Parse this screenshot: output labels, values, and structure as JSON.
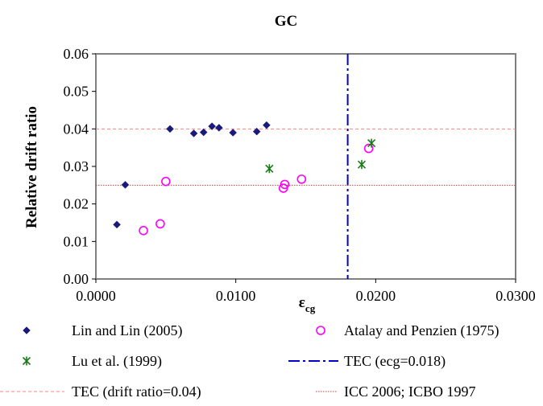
{
  "chart_data": {
    "type": "scatter",
    "title": "GC",
    "ylabel": "Relative drift ratio",
    "xlabel_main": "ε",
    "xlabel_sub": "cg",
    "xlim": [
      0,
      0.03
    ],
    "ylim": [
      0,
      0.06
    ],
    "xticks": [
      "0.0000",
      "0.0100",
      "0.0200",
      "0.0300"
    ],
    "yticks": [
      "0.00",
      "0.01",
      "0.02",
      "0.03",
      "0.04",
      "0.05",
      "0.06"
    ],
    "grid": false,
    "legend_placement": "bottom",
    "series": [
      {
        "name": "Lin and Lin (2005)",
        "marker": "diamond",
        "color": "#1a1a7a",
        "points": [
          [
            0.0015,
            0.0145
          ],
          [
            0.0021,
            0.0251
          ],
          [
            0.0053,
            0.04
          ],
          [
            0.007,
            0.0388
          ],
          [
            0.0077,
            0.0391
          ],
          [
            0.0083,
            0.0407
          ],
          [
            0.0088,
            0.0403
          ],
          [
            0.0098,
            0.039
          ],
          [
            0.0115,
            0.0393
          ],
          [
            0.0122,
            0.041
          ]
        ]
      },
      {
        "name": "Atalay and Penzien (1975)",
        "marker": "circle",
        "color": "#ff00ff",
        "points": [
          [
            0.0034,
            0.0129
          ],
          [
            0.0046,
            0.0147
          ],
          [
            0.005,
            0.026
          ],
          [
            0.0134,
            0.0242
          ],
          [
            0.0135,
            0.0252
          ],
          [
            0.0147,
            0.0266
          ],
          [
            0.0195,
            0.0348
          ]
        ]
      },
      {
        "name": "Lu et al. (1999)",
        "marker": "asterisk",
        "color": "#1a7a1a",
        "points": [
          [
            0.0124,
            0.0294
          ],
          [
            0.019,
            0.0305
          ],
          [
            0.0197,
            0.0362
          ]
        ]
      }
    ],
    "reference_lines": [
      {
        "name": "TEC (ecg=0.018)",
        "orientation": "vertical",
        "value": 0.018,
        "color": "#0000cc",
        "style": "dashdot"
      },
      {
        "name": "TEC (drift ratio=0.04)",
        "orientation": "horizontal",
        "value": 0.04,
        "color": "#ff8080",
        "style": "dashed"
      },
      {
        "name": "ICC 2006; ICBO 1997",
        "orientation": "horizontal",
        "value": 0.025,
        "color": "#cc4040",
        "style": "dotted"
      }
    ],
    "legend": [
      "Lin and Lin (2005)",
      "Atalay and Penzien (1975)",
      "Lu et al. (1999)",
      "TEC (ecg=0.018)",
      "TEC (drift ratio=0.04)",
      "ICC 2006; ICBO 1997"
    ]
  }
}
